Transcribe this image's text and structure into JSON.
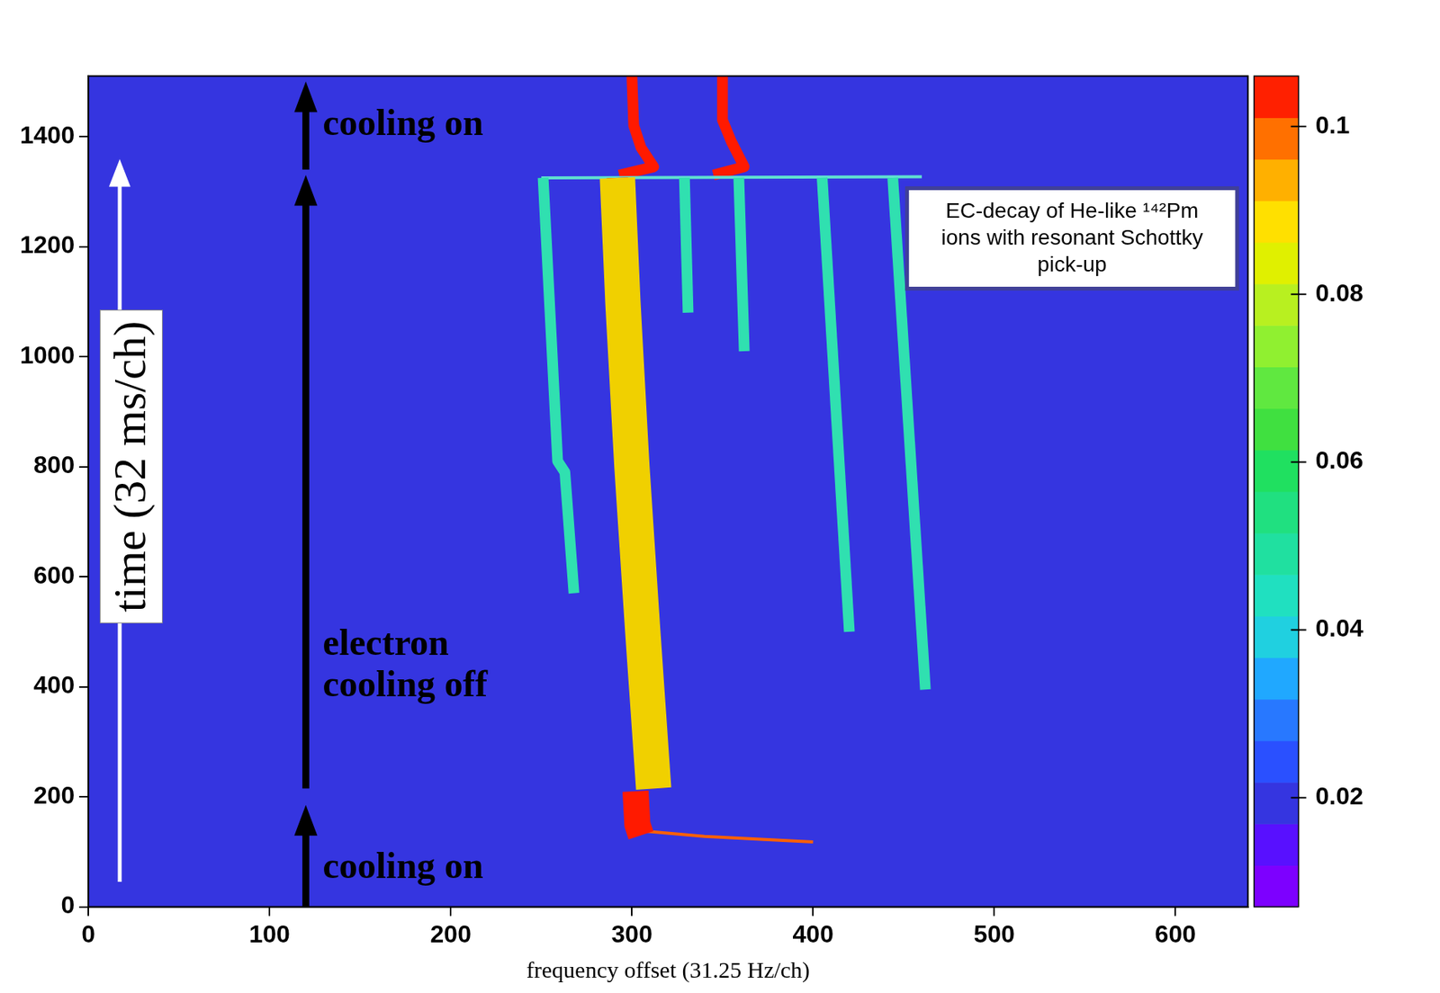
{
  "chart_data": {
    "type": "line",
    "x_label": "frequency offset (31.25 Hz/ch)",
    "y_label": "time (32 ms/ch)",
    "xlim": [
      0,
      640
    ],
    "xticks": [
      0,
      100,
      200,
      300,
      400,
      500,
      600
    ],
    "ylim": [
      0,
      1510
    ],
    "yticks": [
      0,
      200,
      400,
      600,
      800,
      1000,
      1200,
      1400
    ],
    "grid": false,
    "series": [
      {
        "color": "#ff1a00",
        "x": [
          305,
          303,
          302
        ],
        "values": [
          130,
          150,
          210
        ]
      },
      {
        "color": "#f0d000",
        "x": [
          312,
          306,
          300,
          295,
          292
        ],
        "values": [
          215,
          500,
          800,
          1100,
          1325
        ]
      },
      {
        "color": "#ff1a00",
        "x": [
          312,
          306,
          300,
          295,
          292
        ],
        "values": [
          215,
          500,
          800,
          1100,
          1325
        ]
      },
      {
        "color": "#ff6000",
        "x": [
          400,
          340,
          305
        ],
        "values": [
          118,
          128,
          138
        ]
      },
      {
        "color": "#30e0b0",
        "x": [
          268,
          263,
          259,
          251
        ],
        "values": [
          570,
          790,
          810,
          1325
        ]
      },
      {
        "color": "#30e0b0",
        "x": [
          331,
          329
        ],
        "values": [
          1080,
          1325
        ]
      },
      {
        "color": "#30e0b0",
        "x": [
          362,
          359
        ],
        "values": [
          1010,
          1325
        ]
      },
      {
        "color": "#30e0b0",
        "x": [
          420,
          405
        ],
        "values": [
          500,
          1325
        ]
      },
      {
        "color": "#30e0b0",
        "x": [
          462,
          444
        ],
        "values": [
          395,
          1325
        ]
      },
      {
        "color": "#60e0d0",
        "x": [
          250,
          460
        ],
        "values": [
          1325,
          1327
        ]
      },
      {
        "color": "#ff1a00",
        "x": [
          293,
          312,
          305,
          301,
          300
        ],
        "values": [
          1330,
          1345,
          1380,
          1420,
          1510
        ]
      },
      {
        "color": "#ff1a00",
        "x": [
          345,
          362,
          355,
          350,
          350
        ],
        "values": [
          1330,
          1345,
          1390,
          1430,
          1510
        ]
      }
    ],
    "phases": [
      {
        "label": "cooling on",
        "from": 0,
        "to": 185
      },
      {
        "label": "electron cooling off",
        "from": 215,
        "to": 1330
      },
      {
        "label": "cooling on",
        "from": 1340,
        "to": 1500
      }
    ],
    "annotation": "EC-decay of He-like ¹⁴²Pm ions with resonant Schottky pick-up",
    "colorbar": {
      "range": [
        0.007,
        0.106
      ],
      "ticks": [
        0.02,
        0.04,
        0.06,
        0.08,
        0.1
      ],
      "colors": [
        "#7d00ff",
        "#5810ff",
        "#3535e0",
        "#2a50ff",
        "#2878ff",
        "#20a8ff",
        "#20d0e0",
        "#20e0c0",
        "#20e0a0",
        "#20e080",
        "#20e060",
        "#40e040",
        "#60e840",
        "#90f030",
        "#b8f020",
        "#e0f000",
        "#ffe000",
        "#ffb000",
        "#ff7000",
        "#ff2000"
      ]
    },
    "background_level": 0.02
  }
}
